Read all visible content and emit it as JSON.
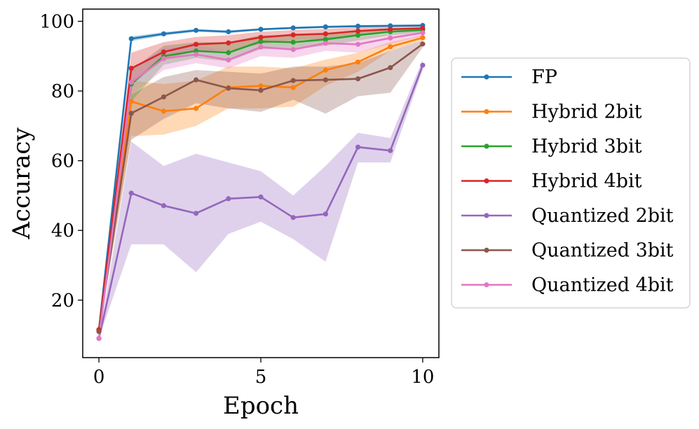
{
  "chart_data": {
    "type": "line",
    "title": "",
    "xlabel": "Epoch",
    "ylabel": "Accuracy",
    "xlim": [
      -0.5,
      10.5
    ],
    "ylim": [
      3.5,
      103.5
    ],
    "xticks": [
      0,
      5,
      10
    ],
    "yticks": [
      20,
      40,
      60,
      80,
      100
    ],
    "grid": false,
    "legend_position": "right",
    "x": [
      0,
      1,
      2,
      3,
      4,
      5,
      6,
      7,
      8,
      9,
      10
    ],
    "series": [
      {
        "name": "FP",
        "color": "#1f77b4",
        "values": [
          11.5,
          95.0,
          96.4,
          97.4,
          97.0,
          97.7,
          98.1,
          98.4,
          98.6,
          98.7,
          98.8
        ],
        "lower": [
          11.5,
          94.3,
          95.9,
          97.0,
          96.6,
          97.4,
          97.8,
          98.1,
          98.3,
          98.4,
          98.5
        ],
        "upper": [
          11.5,
          95.7,
          96.9,
          97.8,
          97.4,
          98.0,
          98.4,
          98.7,
          98.9,
          99.0,
          99.1
        ]
      },
      {
        "name": "Hybrid 2bit",
        "color": "#ff7f0e",
        "values": [
          11.5,
          77.0,
          74.2,
          75.0,
          81.0,
          81.5,
          81.0,
          86.0,
          88.3,
          92.7,
          95.3
        ],
        "lower": [
          11.5,
          67.0,
          67.5,
          70.0,
          75.0,
          75.0,
          75.5,
          81.5,
          85.5,
          91.5,
          94.5
        ],
        "upper": [
          11.5,
          83.0,
          82.0,
          83.0,
          87.0,
          87.0,
          86.5,
          89.0,
          91.0,
          94.0,
          96.0
        ]
      },
      {
        "name": "Hybrid 3bit",
        "color": "#2ca02c",
        "values": [
          11.5,
          82.0,
          90.0,
          91.5,
          91.0,
          94.2,
          94.0,
          94.8,
          96.0,
          97.0,
          97.5
        ],
        "lower": [
          11.5,
          77.0,
          87.5,
          89.5,
          88.5,
          92.0,
          92.0,
          93.0,
          94.5,
          96.0,
          96.8
        ],
        "upper": [
          11.5,
          86.0,
          93.0,
          94.0,
          94.0,
          96.0,
          96.0,
          96.5,
          97.5,
          98.0,
          98.2
        ]
      },
      {
        "name": "Hybrid 4bit",
        "color": "#d62728",
        "values": [
          11.5,
          86.5,
          91.2,
          93.4,
          93.8,
          95.4,
          96.1,
          96.4,
          97.2,
          97.7,
          98.0
        ],
        "lower": [
          11.5,
          82.0,
          89.0,
          91.5,
          91.5,
          93.5,
          94.5,
          95.0,
          96.0,
          96.8,
          97.3
        ],
        "upper": [
          11.5,
          91.0,
          94.0,
          95.5,
          96.0,
          97.0,
          97.5,
          97.8,
          98.3,
          98.6,
          98.7
        ]
      },
      {
        "name": "Quantized 2bit",
        "color": "#9467bd",
        "values": [
          9.0,
          50.7,
          47.1,
          44.9,
          49.1,
          49.6,
          43.7,
          44.7,
          63.9,
          62.9,
          87.4
        ],
        "lower": [
          9.0,
          36.0,
          36.0,
          28.0,
          39.0,
          42.5,
          37.5,
          31.0,
          59.5,
          59.5,
          86.0
        ],
        "upper": [
          9.0,
          65.5,
          58.5,
          62.0,
          59.5,
          57.0,
          50.0,
          58.5,
          68.0,
          66.5,
          89.0
        ]
      },
      {
        "name": "Quantized 3bit",
        "color": "#8c564b",
        "values": [
          11.0,
          73.6,
          78.3,
          83.2,
          80.8,
          80.2,
          83.0,
          83.2,
          83.5,
          86.7,
          93.5
        ],
        "lower": [
          11.0,
          66.0,
          72.0,
          76.5,
          75.0,
          74.0,
          77.5,
          73.5,
          78.5,
          79.5,
          92.5
        ],
        "upper": [
          11.0,
          79.0,
          84.0,
          86.0,
          85.5,
          85.0,
          87.0,
          87.0,
          88.0,
          91.5,
          94.5
        ]
      },
      {
        "name": "Quantized 4bit",
        "color": "#e377c2",
        "values": [
          9.0,
          82.5,
          89.3,
          90.5,
          88.9,
          92.6,
          91.9,
          93.7,
          93.4,
          95.2,
          96.7
        ],
        "lower": [
          9.0,
          79.0,
          86.0,
          88.0,
          86.5,
          90.0,
          89.5,
          91.5,
          91.0,
          93.5,
          95.8
        ],
        "upper": [
          9.0,
          86.0,
          92.5,
          93.0,
          91.5,
          94.5,
          94.0,
          95.5,
          95.5,
          96.5,
          97.5
        ]
      }
    ]
  }
}
